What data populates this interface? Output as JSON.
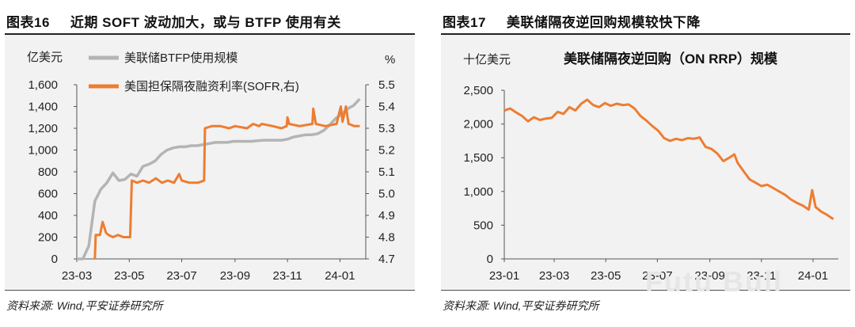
{
  "watermark": "Futu Bull",
  "left": {
    "fig_no": "图表16",
    "fig_title": "近期 SOFT 波动加大，或与 BTFP 使用有关",
    "source": "资料来源: Wind,平安证券研究所",
    "chart_data": {
      "type": "line",
      "y_unit_left": "亿美元",
      "y_unit_right": "%",
      "ylim_left": [
        0,
        1600
      ],
      "yticks_left": [
        0,
        200,
        400,
        600,
        800,
        1000,
        1200,
        1400,
        1600
      ],
      "ytick_labels_left": [
        "0",
        "200",
        "400",
        "600",
        "800",
        "1,000",
        "1,200",
        "1,400",
        "1,600"
      ],
      "ylim_right": [
        4.7,
        5.5
      ],
      "yticks_right": [
        4.7,
        4.8,
        4.9,
        5.0,
        5.1,
        5.2,
        5.3,
        5.4,
        5.5
      ],
      "ytick_labels_right": [
        "4.7",
        "4.8",
        "4.9",
        "5.0",
        "5.1",
        "5.2",
        "5.3",
        "5.4",
        "5.5"
      ],
      "xlim": [
        "2023-03-01",
        "2024-01-31"
      ],
      "xticks": [
        "2023-03-01",
        "2023-05-01",
        "2023-07-01",
        "2023-09-01",
        "2023-11-01",
        "2024-01-01"
      ],
      "xtick_labels": [
        "23-03",
        "23-05",
        "23-07",
        "23-09",
        "23-11",
        "24-01"
      ],
      "legend_position": "top-left",
      "series": [
        {
          "name": "美联储BTFP使用规模",
          "color": "#b4b4b4",
          "axis": "left",
          "points": [
            [
              "2023-03-01",
              0
            ],
            [
              "2023-03-08",
              0
            ],
            [
              "2023-03-15",
              120
            ],
            [
              "2023-03-22",
              530
            ],
            [
              "2023-03-29",
              640
            ],
            [
              "2023-04-05",
              700
            ],
            [
              "2023-04-12",
              790
            ],
            [
              "2023-04-19",
              720
            ],
            [
              "2023-04-26",
              730
            ],
            [
              "2023-05-03",
              780
            ],
            [
              "2023-05-10",
              760
            ],
            [
              "2023-05-17",
              850
            ],
            [
              "2023-05-24",
              870
            ],
            [
              "2023-05-31",
              900
            ],
            [
              "2023-06-07",
              960
            ],
            [
              "2023-06-14",
              1000
            ],
            [
              "2023-06-21",
              1020
            ],
            [
              "2023-06-28",
              1030
            ],
            [
              "2023-07-05",
              1030
            ],
            [
              "2023-07-12",
              1040
            ],
            [
              "2023-07-19",
              1040
            ],
            [
              "2023-07-26",
              1050
            ],
            [
              "2023-08-02",
              1060
            ],
            [
              "2023-08-09",
              1070
            ],
            [
              "2023-08-16",
              1070
            ],
            [
              "2023-08-23",
              1070
            ],
            [
              "2023-08-30",
              1080
            ],
            [
              "2023-09-06",
              1080
            ],
            [
              "2023-09-13",
              1080
            ],
            [
              "2023-09-20",
              1080
            ],
            [
              "2023-09-27",
              1085
            ],
            [
              "2023-10-04",
              1090
            ],
            [
              "2023-10-11",
              1090
            ],
            [
              "2023-10-18",
              1090
            ],
            [
              "2023-10-25",
              1090
            ],
            [
              "2023-11-01",
              1100
            ],
            [
              "2023-11-08",
              1120
            ],
            [
              "2023-11-15",
              1130
            ],
            [
              "2023-11-22",
              1140
            ],
            [
              "2023-11-29",
              1140
            ],
            [
              "2023-12-06",
              1150
            ],
            [
              "2023-12-13",
              1180
            ],
            [
              "2023-12-20",
              1230
            ],
            [
              "2023-12-27",
              1290
            ],
            [
              "2024-01-03",
              1330
            ],
            [
              "2024-01-10",
              1380
            ],
            [
              "2024-01-17",
              1410
            ],
            [
              "2024-01-24",
              1470
            ]
          ]
        },
        {
          "name": "美国担保隔夜融资利率(SOFR,右)",
          "color": "#ed7d31",
          "axis": "right",
          "points": [
            [
              "2023-03-22",
              4.7
            ],
            [
              "2023-03-23",
              4.81
            ],
            [
              "2023-03-28",
              4.81
            ],
            [
              "2023-03-31",
              4.87
            ],
            [
              "2023-04-04",
              4.82
            ],
            [
              "2023-04-07",
              4.81
            ],
            [
              "2023-04-12",
              4.8
            ],
            [
              "2023-04-18",
              4.81
            ],
            [
              "2023-04-24",
              4.8
            ],
            [
              "2023-05-02",
              4.8
            ],
            [
              "2023-05-04",
              5.06
            ],
            [
              "2023-05-10",
              5.05
            ],
            [
              "2023-05-17",
              5.06
            ],
            [
              "2023-05-24",
              5.05
            ],
            [
              "2023-06-01",
              5.07
            ],
            [
              "2023-06-08",
              5.05
            ],
            [
              "2023-06-15",
              5.06
            ],
            [
              "2023-06-22",
              5.05
            ],
            [
              "2023-06-28",
              5.09
            ],
            [
              "2023-07-01",
              5.06
            ],
            [
              "2023-07-10",
              5.05
            ],
            [
              "2023-07-20",
              5.05
            ],
            [
              "2023-07-27",
              5.06
            ],
            [
              "2023-07-28",
              5.3
            ],
            [
              "2023-08-05",
              5.31
            ],
            [
              "2023-08-15",
              5.31
            ],
            [
              "2023-08-25",
              5.3
            ],
            [
              "2023-09-01",
              5.31
            ],
            [
              "2023-09-15",
              5.3
            ],
            [
              "2023-09-22",
              5.32
            ],
            [
              "2023-09-29",
              5.31
            ],
            [
              "2023-10-02",
              5.32
            ],
            [
              "2023-10-15",
              5.31
            ],
            [
              "2023-10-25",
              5.3
            ],
            [
              "2023-10-31",
              5.31
            ],
            [
              "2023-11-01",
              5.35
            ],
            [
              "2023-11-03",
              5.32
            ],
            [
              "2023-11-15",
              5.31
            ],
            [
              "2023-11-30",
              5.32
            ],
            [
              "2023-12-01",
              5.39
            ],
            [
              "2023-12-04",
              5.32
            ],
            [
              "2023-12-15",
              5.31
            ],
            [
              "2023-12-28",
              5.32
            ],
            [
              "2024-01-02",
              5.4
            ],
            [
              "2024-01-04",
              5.33
            ],
            [
              "2024-01-08",
              5.4
            ],
            [
              "2024-01-11",
              5.32
            ],
            [
              "2024-01-18",
              5.31
            ],
            [
              "2024-01-24",
              5.31
            ]
          ]
        }
      ]
    }
  },
  "right": {
    "fig_no": "图表17",
    "fig_title": "美联储隔夜逆回购规模较快下降",
    "source": "资料来源: Wind,平安证券研究所",
    "chart_data": {
      "type": "line",
      "title": "美联储隔夜逆回购（ON RRP）规模",
      "y_unit": "十亿美元",
      "ylim": [
        0,
        2500
      ],
      "yticks": [
        0,
        500,
        1000,
        1500,
        2000,
        2500
      ],
      "ytick_labels": [
        "0",
        "500",
        "1,000",
        "1,500",
        "2,000",
        "2,500"
      ],
      "xlim": [
        "2023-01-01",
        "2024-01-31"
      ],
      "xticks": [
        "2023-01-01",
        "2023-03-01",
        "2023-05-01",
        "2023-07-01",
        "2023-09-01",
        "2023-11-01",
        "2024-01-01"
      ],
      "xtick_labels": [
        "23-01",
        "23-03",
        "23-05",
        "23-07",
        "23-09",
        "23-11",
        "24-01"
      ],
      "series": [
        {
          "color": "#ed7d31",
          "points": [
            [
              "2023-01-01",
              2200
            ],
            [
              "2023-01-08",
              2230
            ],
            [
              "2023-01-15",
              2170
            ],
            [
              "2023-01-22",
              2120
            ],
            [
              "2023-01-29",
              2040
            ],
            [
              "2023-02-05",
              2100
            ],
            [
              "2023-02-12",
              2060
            ],
            [
              "2023-02-19",
              2080
            ],
            [
              "2023-02-26",
              2090
            ],
            [
              "2023-03-05",
              2180
            ],
            [
              "2023-03-12",
              2150
            ],
            [
              "2023-03-19",
              2250
            ],
            [
              "2023-03-26",
              2200
            ],
            [
              "2023-04-02",
              2300
            ],
            [
              "2023-04-09",
              2360
            ],
            [
              "2023-04-16",
              2280
            ],
            [
              "2023-04-23",
              2250
            ],
            [
              "2023-04-30",
              2310
            ],
            [
              "2023-05-07",
              2270
            ],
            [
              "2023-05-14",
              2300
            ],
            [
              "2023-05-21",
              2280
            ],
            [
              "2023-05-28",
              2290
            ],
            [
              "2023-06-04",
              2230
            ],
            [
              "2023-06-11",
              2120
            ],
            [
              "2023-06-18",
              2050
            ],
            [
              "2023-06-25",
              1970
            ],
            [
              "2023-07-02",
              1900
            ],
            [
              "2023-07-09",
              1790
            ],
            [
              "2023-07-16",
              1750
            ],
            [
              "2023-07-23",
              1780
            ],
            [
              "2023-07-30",
              1760
            ],
            [
              "2023-08-06",
              1790
            ],
            [
              "2023-08-13",
              1780
            ],
            [
              "2023-08-20",
              1800
            ],
            [
              "2023-08-27",
              1660
            ],
            [
              "2023-09-03",
              1630
            ],
            [
              "2023-09-10",
              1560
            ],
            [
              "2023-09-17",
              1450
            ],
            [
              "2023-09-24",
              1500
            ],
            [
              "2023-09-30",
              1550
            ],
            [
              "2023-10-04",
              1420
            ],
            [
              "2023-10-11",
              1300
            ],
            [
              "2023-10-18",
              1180
            ],
            [
              "2023-10-25",
              1130
            ],
            [
              "2023-11-01",
              1080
            ],
            [
              "2023-11-08",
              1100
            ],
            [
              "2023-11-15",
              1050
            ],
            [
              "2023-11-22",
              1000
            ],
            [
              "2023-11-29",
              950
            ],
            [
              "2023-12-06",
              880
            ],
            [
              "2023-12-13",
              830
            ],
            [
              "2023-12-20",
              790
            ],
            [
              "2023-12-27",
              730
            ],
            [
              "2023-12-31",
              1020
            ],
            [
              "2024-01-04",
              770
            ],
            [
              "2024-01-11",
              700
            ],
            [
              "2024-01-18",
              650
            ],
            [
              "2024-01-25",
              590
            ]
          ]
        }
      ]
    }
  }
}
